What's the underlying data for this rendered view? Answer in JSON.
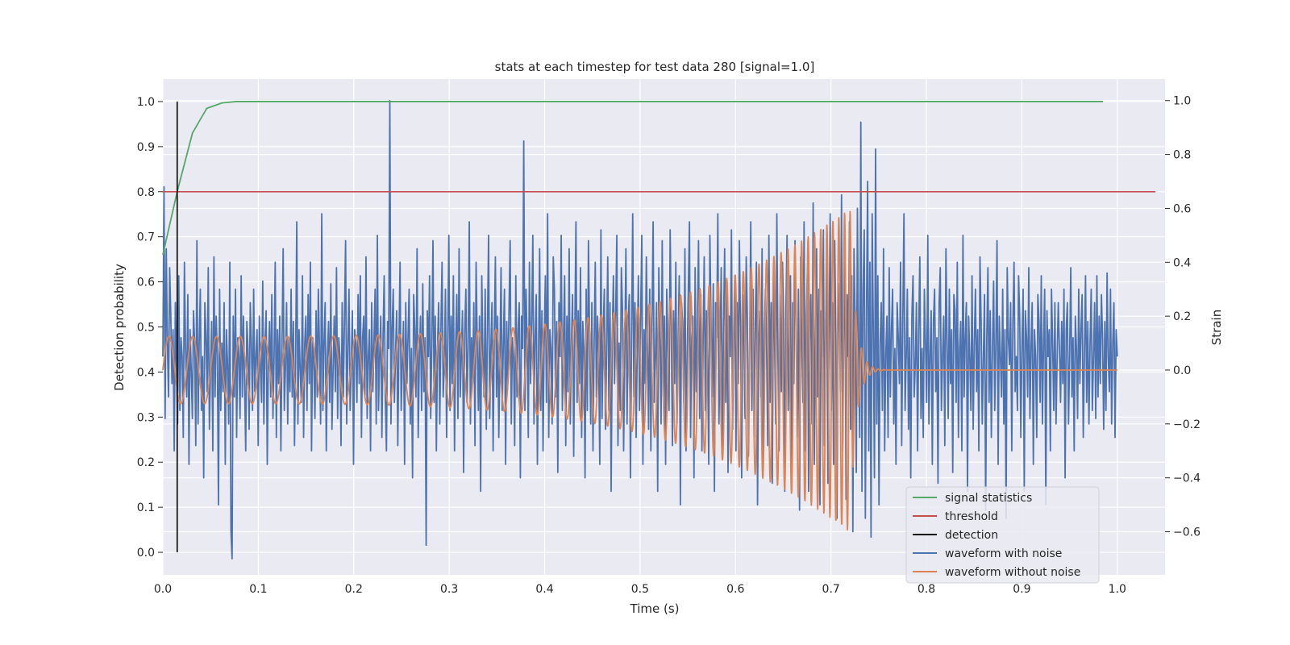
{
  "chart_data": {
    "type": "line",
    "title": "stats at each timestep for test data 280 [signal=1.0]",
    "xlabel": "Time (s)",
    "ylabel": "Detection probability",
    "y2label": "Strain",
    "xlim": [
      0.0,
      1.05
    ],
    "ylim": [
      -0.05,
      1.05
    ],
    "y2lim": [
      -0.76,
      1.08
    ],
    "grid": true,
    "legend_position": "lower-right",
    "x_ticks": [
      "0.0",
      "0.1",
      "0.2",
      "0.3",
      "0.4",
      "0.5",
      "0.6",
      "0.7",
      "0.8",
      "0.9",
      "1.0"
    ],
    "y_ticks": [
      "0.0",
      "0.1",
      "0.2",
      "0.3",
      "0.4",
      "0.5",
      "0.6",
      "0.7",
      "0.8",
      "0.9",
      "1.0"
    ],
    "y2_ticks": [
      "−0.6",
      "−0.4",
      "−0.2",
      "0.0",
      "0.2",
      "0.4",
      "0.6",
      "0.8",
      "1.0"
    ],
    "series": [
      {
        "name": "signal statistics",
        "color": "#55a868",
        "axis": "left",
        "x": [
          0.0,
          0.015,
          0.031,
          0.046,
          0.062,
          0.077,
          0.1,
          0.2,
          0.4,
          0.6,
          0.8,
          0.985
        ],
        "y": [
          0.66,
          0.8,
          0.93,
          0.985,
          0.997,
          1.0,
          1.0,
          1.0,
          1.0,
          1.0,
          1.0,
          1.0
        ]
      },
      {
        "name": "threshold",
        "color": "#c44e52",
        "axis": "left",
        "x": [
          0.0,
          1.04
        ],
        "y": [
          0.8,
          0.8
        ]
      },
      {
        "name": "detection",
        "color": "#000000",
        "axis": "left",
        "x": [
          0.015,
          0.015
        ],
        "y": [
          0.0,
          1.0
        ]
      },
      {
        "name": "waveform with noise",
        "color": "#4c72b0",
        "axis": "right",
        "x_range": [
          0.0,
          1.0
        ],
        "y": [
          0.05,
          0.68,
          -0.18,
          0.45,
          0.1,
          -0.1,
          0.38,
          0.2,
          -0.05,
          0.15,
          -0.3,
          0.25,
          0.02,
          -0.2,
          0.35,
          -0.15,
          0.12,
          0.05,
          -0.25,
          0.4,
          0.08,
          -0.1,
          0.28,
          -0.35,
          0.15,
          0.0,
          -0.18,
          0.22,
          0.1,
          -0.28,
          0.48,
          -0.2,
          0.1,
          0.3,
          -0.15,
          0.05,
          -0.4,
          0.25,
          0.12,
          -0.08,
          0.38,
          -0.22,
          0.0,
          0.18,
          -0.3,
          0.42,
          -0.1,
          0.2,
          0.05,
          -0.5,
          0.3,
          -0.15,
          0.1,
          -0.08,
          0.25,
          -0.35,
          0.15,
          0.02,
          -0.2,
          0.4,
          -0.6,
          -0.7,
          0.2,
          -0.1,
          0.3,
          -0.25,
          0.12,
          0.05,
          -0.18,
          0.35,
          -0.1,
          0.2,
          -0.05,
          -0.3,
          0.18,
          0.08,
          -0.22,
          0.25,
          0.1,
          -0.15,
          0.3,
          -0.08,
          0.05,
          0.15,
          -0.28,
          0.2,
          0.0,
          -0.12,
          0.33,
          -0.2,
          0.1,
          0.22,
          -0.35,
          0.05,
          0.18,
          -0.1,
          0.28,
          -0.18,
          0.05,
          0.4,
          -0.25,
          0.15,
          -0.05,
          0.2,
          -0.3,
          0.1,
          0.45,
          -0.15,
          0.0,
          0.25,
          -0.2,
          0.12,
          -0.08,
          0.3,
          -0.1,
          0.18,
          -0.28,
          0.05,
          0.55,
          -0.2,
          0.15,
          0.0,
          -0.12,
          0.35,
          -0.25,
          0.1,
          0.2,
          -0.15,
          0.28,
          -0.05,
          0.4,
          -0.3,
          0.12,
          0.05,
          -0.18,
          0.22,
          -0.1,
          0.3,
          0.08,
          -0.2,
          0.58,
          -0.15,
          0.1,
          0.25,
          -0.3,
          0.05,
          0.18,
          -0.12,
          0.32,
          -0.22,
          0.0,
          0.2,
          -0.08,
          0.38,
          -0.18,
          0.12,
          0.05,
          -0.28,
          0.25,
          -0.1,
          0.18,
          0.48,
          -0.2,
          0.08,
          0.3,
          -0.15,
          0.02,
          0.22,
          -0.35,
          0.15,
          0.1,
          -0.12,
          0.28,
          -0.05,
          0.35,
          -0.25,
          0.12,
          0.2,
          -0.1,
          0.42,
          -0.18,
          0.05,
          0.15,
          -0.3,
          0.25,
          -0.08,
          0.1,
          0.3,
          -0.2,
          0.5,
          -0.15,
          0.05,
          0.2,
          -0.25,
          0.12,
          0.35,
          -0.1,
          -0.3,
          0.18,
          0.08,
          1.0,
          -0.2,
          0.15,
          0.3,
          -0.12,
          0.05,
          0.22,
          -0.28,
          0.1,
          0.4,
          -0.15,
          0.02,
          0.18,
          -0.35,
          0.25,
          -0.05,
          0.12,
          0.3,
          -0.2,
          0.08,
          -0.4,
          0.28,
          0.15,
          -0.1,
          0.45,
          -0.25,
          0.05,
          0.2,
          -0.15,
          0.32,
          -0.08,
          0.12,
          -0.65,
          0.22,
          0.05,
          0.35,
          -0.18,
          0.1,
          0.48,
          -0.12,
          0.2,
          -0.3,
          0.08,
          0.25,
          -0.2,
          0.15,
          0.4,
          -0.1,
          0.02,
          0.3,
          -0.25,
          0.12,
          0.5,
          -0.15,
          0.2,
          -0.05,
          0.35,
          -0.3,
          0.1,
          0.28,
          -0.18,
          0.45,
          -0.1,
          0.05,
          0.22,
          -0.38,
          0.15,
          0.3,
          -0.12,
          0.08,
          0.55,
          -0.2,
          0.12,
          -0.05,
          0.25,
          -0.28,
          0.4,
          0.1,
          -0.15,
          0.2,
          -0.45,
          0.35,
          0.05,
          -0.1,
          0.3,
          -0.22,
          0.15,
          0.5,
          -0.18,
          0.08,
          0.25,
          -0.3,
          0.12,
          0.42,
          -0.1,
          0.2,
          -0.25,
          0.05,
          0.38,
          -0.15,
          0.1,
          0.3,
          -0.35,
          0.18,
          -0.05,
          0.22,
          0.48,
          -0.2,
          0.12,
          0.05,
          -0.28,
          0.35,
          -0.1,
          0.15,
          0.25,
          -0.4,
          0.2,
          0.08,
          0.85,
          -0.15,
          0.3,
          0.1,
          -0.25,
          0.4,
          -0.05,
          0.18,
          0.5,
          -0.2,
          0.12,
          0.28,
          -0.35,
          0.05,
          0.45,
          -0.15,
          0.22,
          -0.3,
          0.1,
          0.35,
          -0.12,
          0.58,
          -0.25,
          0.15,
          0.08,
          -0.2,
          0.42,
          0.3,
          -0.1,
          0.18,
          -0.38,
          0.25,
          0.05,
          0.5,
          -0.15,
          0.12,
          0.35,
          -0.28,
          0.2,
          -0.08,
          0.45,
          -0.2,
          0.1,
          0.28,
          -0.32,
          0.15,
          0.55,
          -0.12,
          0.22,
          -0.05,
          0.38,
          -0.25,
          0.18,
          0.08,
          -0.4,
          0.3,
          -0.15,
          0.48,
          0.12,
          -0.2,
          0.25,
          -0.3,
          0.1,
          0.4,
          -0.1,
          0.2,
          0.05,
          -0.35,
          0.52,
          -0.18,
          0.15,
          0.3,
          -0.22,
          0.08,
          0.42,
          -0.15,
          0.25,
          -0.45,
          0.12,
          0.35,
          -0.05,
          0.2,
          0.5,
          -0.28,
          0.1,
          -0.15,
          0.38,
          0.22,
          -0.3,
          0.05,
          0.45,
          -0.2,
          0.18,
          0.28,
          -0.4,
          0.12,
          0.58,
          -0.1,
          0.25,
          -0.25,
          0.08,
          0.35,
          -0.15,
          0.2,
          0.5,
          -0.35,
          0.15,
          -0.05,
          0.42,
          0.1,
          -0.22,
          0.3,
          -0.3,
          0.18,
          0.55,
          -0.12,
          0.05,
          0.25,
          -0.45,
          0.38,
          0.12,
          -0.2,
          0.48,
          -0.1,
          0.2,
          -0.35,
          0.3,
          0.08,
          -0.15,
          0.52,
          0.15,
          -0.28,
          0.22,
          -0.05,
          0.4,
          -0.2,
          0.1,
          0.35,
          -0.5,
          0.25,
          0.18,
          -0.12,
          0.45,
          -0.3,
          0.05,
          0.3,
          0.55,
          -0.25,
          0.12,
          0.2,
          -0.4,
          0.38,
          -0.08,
          0.15,
          0.48,
          -0.18,
          0.28,
          -0.3,
          0.1,
          0.42,
          -0.15,
          0.22,
          0.05,
          -0.35,
          0.5,
          0.18,
          -0.1,
          0.32,
          -0.45,
          0.25,
          0.12,
          0.58,
          -0.2,
          0.08,
          0.38,
          -0.28,
          0.15,
          0.45,
          -0.12,
          0.3,
          -0.38,
          0.2,
          0.05,
          0.52,
          -0.22,
          0.1,
          0.35,
          -0.3,
          0.25,
          -0.05,
          0.48,
          0.15,
          -0.4,
          0.28,
          0.12,
          -0.18,
          0.42,
          0.2,
          -0.32,
          0.05,
          0.55,
          -0.15,
          0.3,
          -0.25,
          0.18,
          0.4,
          -0.5,
          0.1,
          0.22,
          -0.1,
          0.45,
          -0.35,
          0.15,
          0.3,
          0.08,
          -0.28,
          0.5,
          -0.12,
          0.25,
          -0.42,
          0.35,
          0.12,
          -0.2,
          0.58,
          0.05,
          -0.3,
          0.28,
          -0.08,
          0.4,
          0.18,
          -0.45,
          0.22,
          0.5,
          -0.15,
          0.1,
          0.35,
          -0.38,
          0.25,
          -0.05,
          0.48,
          0.15,
          -0.25,
          0.3,
          -0.52,
          0.42,
          0.08,
          -0.12,
          0.55,
          -0.3,
          0.2,
          0.38,
          -0.45,
          0.12,
          0.28,
          -0.2,
          0.62,
          -0.35,
          0.15,
          0.45,
          -0.1,
          0.3,
          -0.5,
          0.22,
          0.05,
          0.52,
          -0.28,
          0.18,
          0.4,
          -0.42,
          0.1,
          0.58,
          -0.15,
          0.25,
          -0.35,
          0.48,
          0.12,
          -0.55,
          0.32,
          0.2,
          -0.08,
          0.65,
          -0.3,
          0.15,
          0.4,
          -0.48,
          0.28,
          0.05,
          0.55,
          -0.22,
          0.35,
          -0.6,
          0.45,
          0.18,
          -0.38,
          0.6,
          0.1,
          -0.25,
          0.92,
          -0.45,
          0.3,
          0.52,
          -0.55,
          0.22,
          0.7,
          -0.3,
          0.4,
          -0.62,
          0.58,
          0.15,
          -0.4,
          0.82,
          -0.2,
          0.35,
          -0.5,
          0.1,
          0.25,
          -0.15,
          0.45,
          -0.3,
          0.05,
          0.2,
          -0.25,
          0.38,
          -0.1,
          0.15,
          0.3,
          -0.2,
          0.08,
          -0.35,
          0.25,
          0.12,
          -0.05,
          0.4,
          -0.28,
          0.18,
          0.58,
          -0.15,
          0.05,
          0.3,
          -0.22,
          0.12,
          -0.4,
          0.2,
          0.35,
          -0.1,
          0.02,
          0.25,
          -0.3,
          0.15,
          0.42,
          -0.18,
          0.08,
          -0.25,
          0.3,
          0.1,
          -0.12,
          0.5,
          -0.2,
          0.05,
          0.22,
          -0.35,
          0.18,
          0.3,
          -0.08,
          0.12,
          -0.42,
          0.25,
          0.38,
          -0.15,
          0.05,
          0.2,
          -0.28,
          0.45,
          0.1,
          -0.18,
          0.3,
          -0.05,
          0.15,
          -0.38,
          0.28,
          0.22,
          -0.12,
          0.4,
          -0.25,
          0.08,
          0.18,
          -0.3,
          0.5,
          -0.1,
          0.12,
          0.25,
          -0.45,
          0.2,
          0.05,
          -0.15,
          0.35,
          -0.22,
          0.1,
          0.3,
          -0.08,
          0.15,
          -0.3,
          0.42,
          0.18,
          -0.2,
          0.05,
          0.28,
          -0.52,
          0.12,
          0.38,
          -0.12,
          0.22,
          -0.25,
          0.08,
          0.33,
          -0.15,
          0.1,
          0.48,
          -0.35,
          0.2,
          0.05,
          -0.1,
          0.3,
          -0.2,
          0.15,
          -0.55,
          0.38,
          0.12,
          0.02,
          0.25,
          -0.3,
          0.18,
          0.4,
          -0.08,
          0.05,
          -0.15,
          0.35,
          0.2,
          -0.25,
          0.1,
          0.3,
          -0.45,
          0.22,
          0.12,
          -0.1,
          0.38,
          -0.18,
          0.08,
          0.25,
          -0.35,
          0.15,
          0.05,
          -0.25,
          0.28,
          0.18,
          -0.12,
          0.35,
          -0.2,
          0.1,
          0.3,
          -0.5,
          0.22,
          0.05,
          0.15,
          -0.3,
          0.3,
          0.1,
          -0.15,
          0.25,
          -0.2,
          0.05,
          0.25,
          0.08,
          -0.12,
          0.18,
          -0.05,
          0.3,
          -0.4,
          0.15,
          0.25,
          -0.2,
          0.05,
          0.38,
          -0.1,
          0.12,
          -0.3,
          0.2,
          0.08,
          -0.18,
          0.3,
          -0.05,
          0.15,
          0.28,
          -0.25,
          0.05,
          0.35,
          -0.12,
          0.18,
          -0.2,
          0.1,
          0.3,
          -0.15,
          0.05,
          0.25,
          -0.18,
          0.35,
          -0.1,
          0.2,
          -0.05,
          0.28,
          0.12,
          -0.22,
          0.18,
          -0.15,
          0.36,
          0.05,
          -0.08,
          0.3,
          -0.2,
          0.1,
          0.25,
          -0.25,
          0.15,
          0.05
        ]
      },
      {
        "name": "waveform without noise",
        "color": "#dd8452",
        "axis": "right",
        "chirp": {
          "t_start": 0.0,
          "t_merger": 0.72,
          "t_end": 1.0,
          "f_start_hz": 40,
          "f_merger_hz": 170,
          "amp_start": 0.125,
          "amp_merger": 0.6,
          "ringdown_tau_s": 0.006
        }
      }
    ]
  }
}
